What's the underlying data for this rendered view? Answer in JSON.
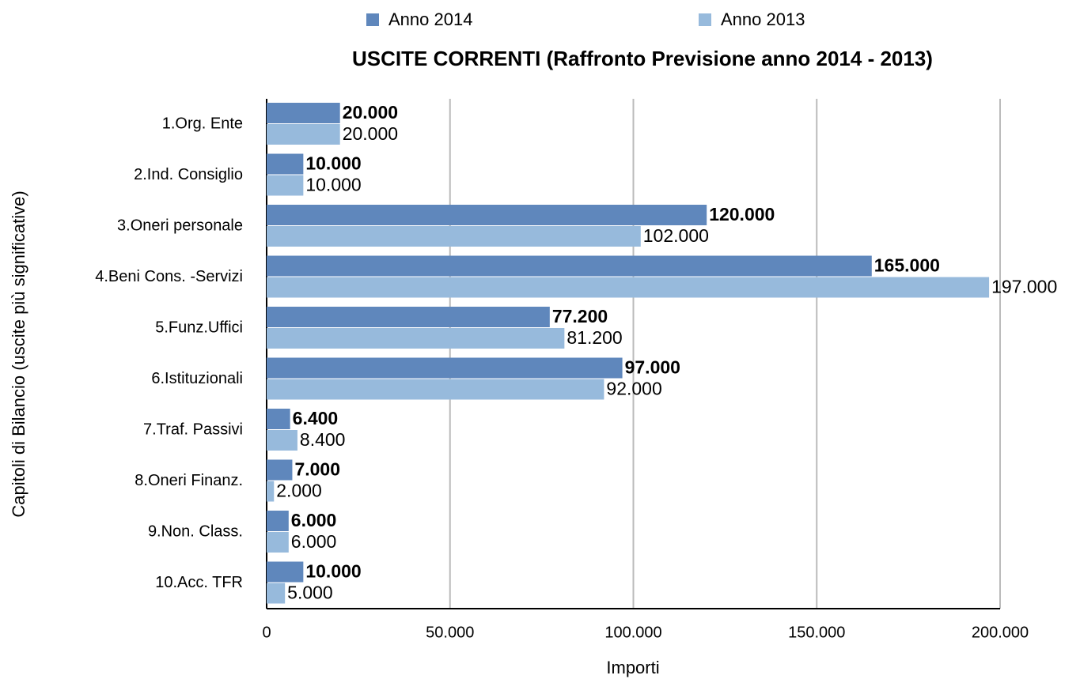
{
  "chart_data": {
    "type": "bar",
    "orientation": "horizontal",
    "title": "USCITE CORRENTI (Raffronto Previsione anno 2014 - 2013)",
    "x_label": "Importi",
    "y_label": "Capitoli di Bilancio (uscite più significative)",
    "categories": [
      "1.Org. Ente",
      "2.Ind. Consiglio",
      "3.Oneri personale",
      "4.Beni Cons. -Servizi",
      "5.Funz.Uffici",
      "6.Istituzionali",
      "7.Traf. Passivi",
      "8.Oneri Finanz.",
      "9.Non. Class.",
      "10.Acc. TFR"
    ],
    "series": [
      {
        "name": "Anno 2014",
        "color": "#5f87bc",
        "values": [
          20000,
          10000,
          120000,
          165000,
          77200,
          97000,
          6400,
          7000,
          6000,
          10000
        ],
        "value_labels": [
          "20.000",
          "10.000",
          "120.000",
          "165.000",
          "77.200",
          "97.000",
          "6.400",
          "7.000",
          "6.000",
          "10.000"
        ]
      },
      {
        "name": "Anno 2013",
        "color": "#97badc",
        "values": [
          20000,
          10000,
          102000,
          197000,
          81200,
          92000,
          8400,
          2000,
          6000,
          5000
        ],
        "value_labels": [
          "20.000",
          "10.000",
          "102.000",
          "197.000",
          "81.200",
          "92.000",
          "8.400",
          "2.000",
          "6.000",
          "5.000"
        ]
      }
    ],
    "xlim": [
      0,
      200000
    ],
    "xticks": [
      0,
      {
        "value": 50000,
        "label": "50.000"
      },
      {
        "value": 100000,
        "label": "100.000"
      },
      {
        "value": 150000,
        "label": "150.000"
      },
      {
        "value": 200000,
        "label": "200.000"
      }
    ],
    "grid": true,
    "legend": "top"
  }
}
